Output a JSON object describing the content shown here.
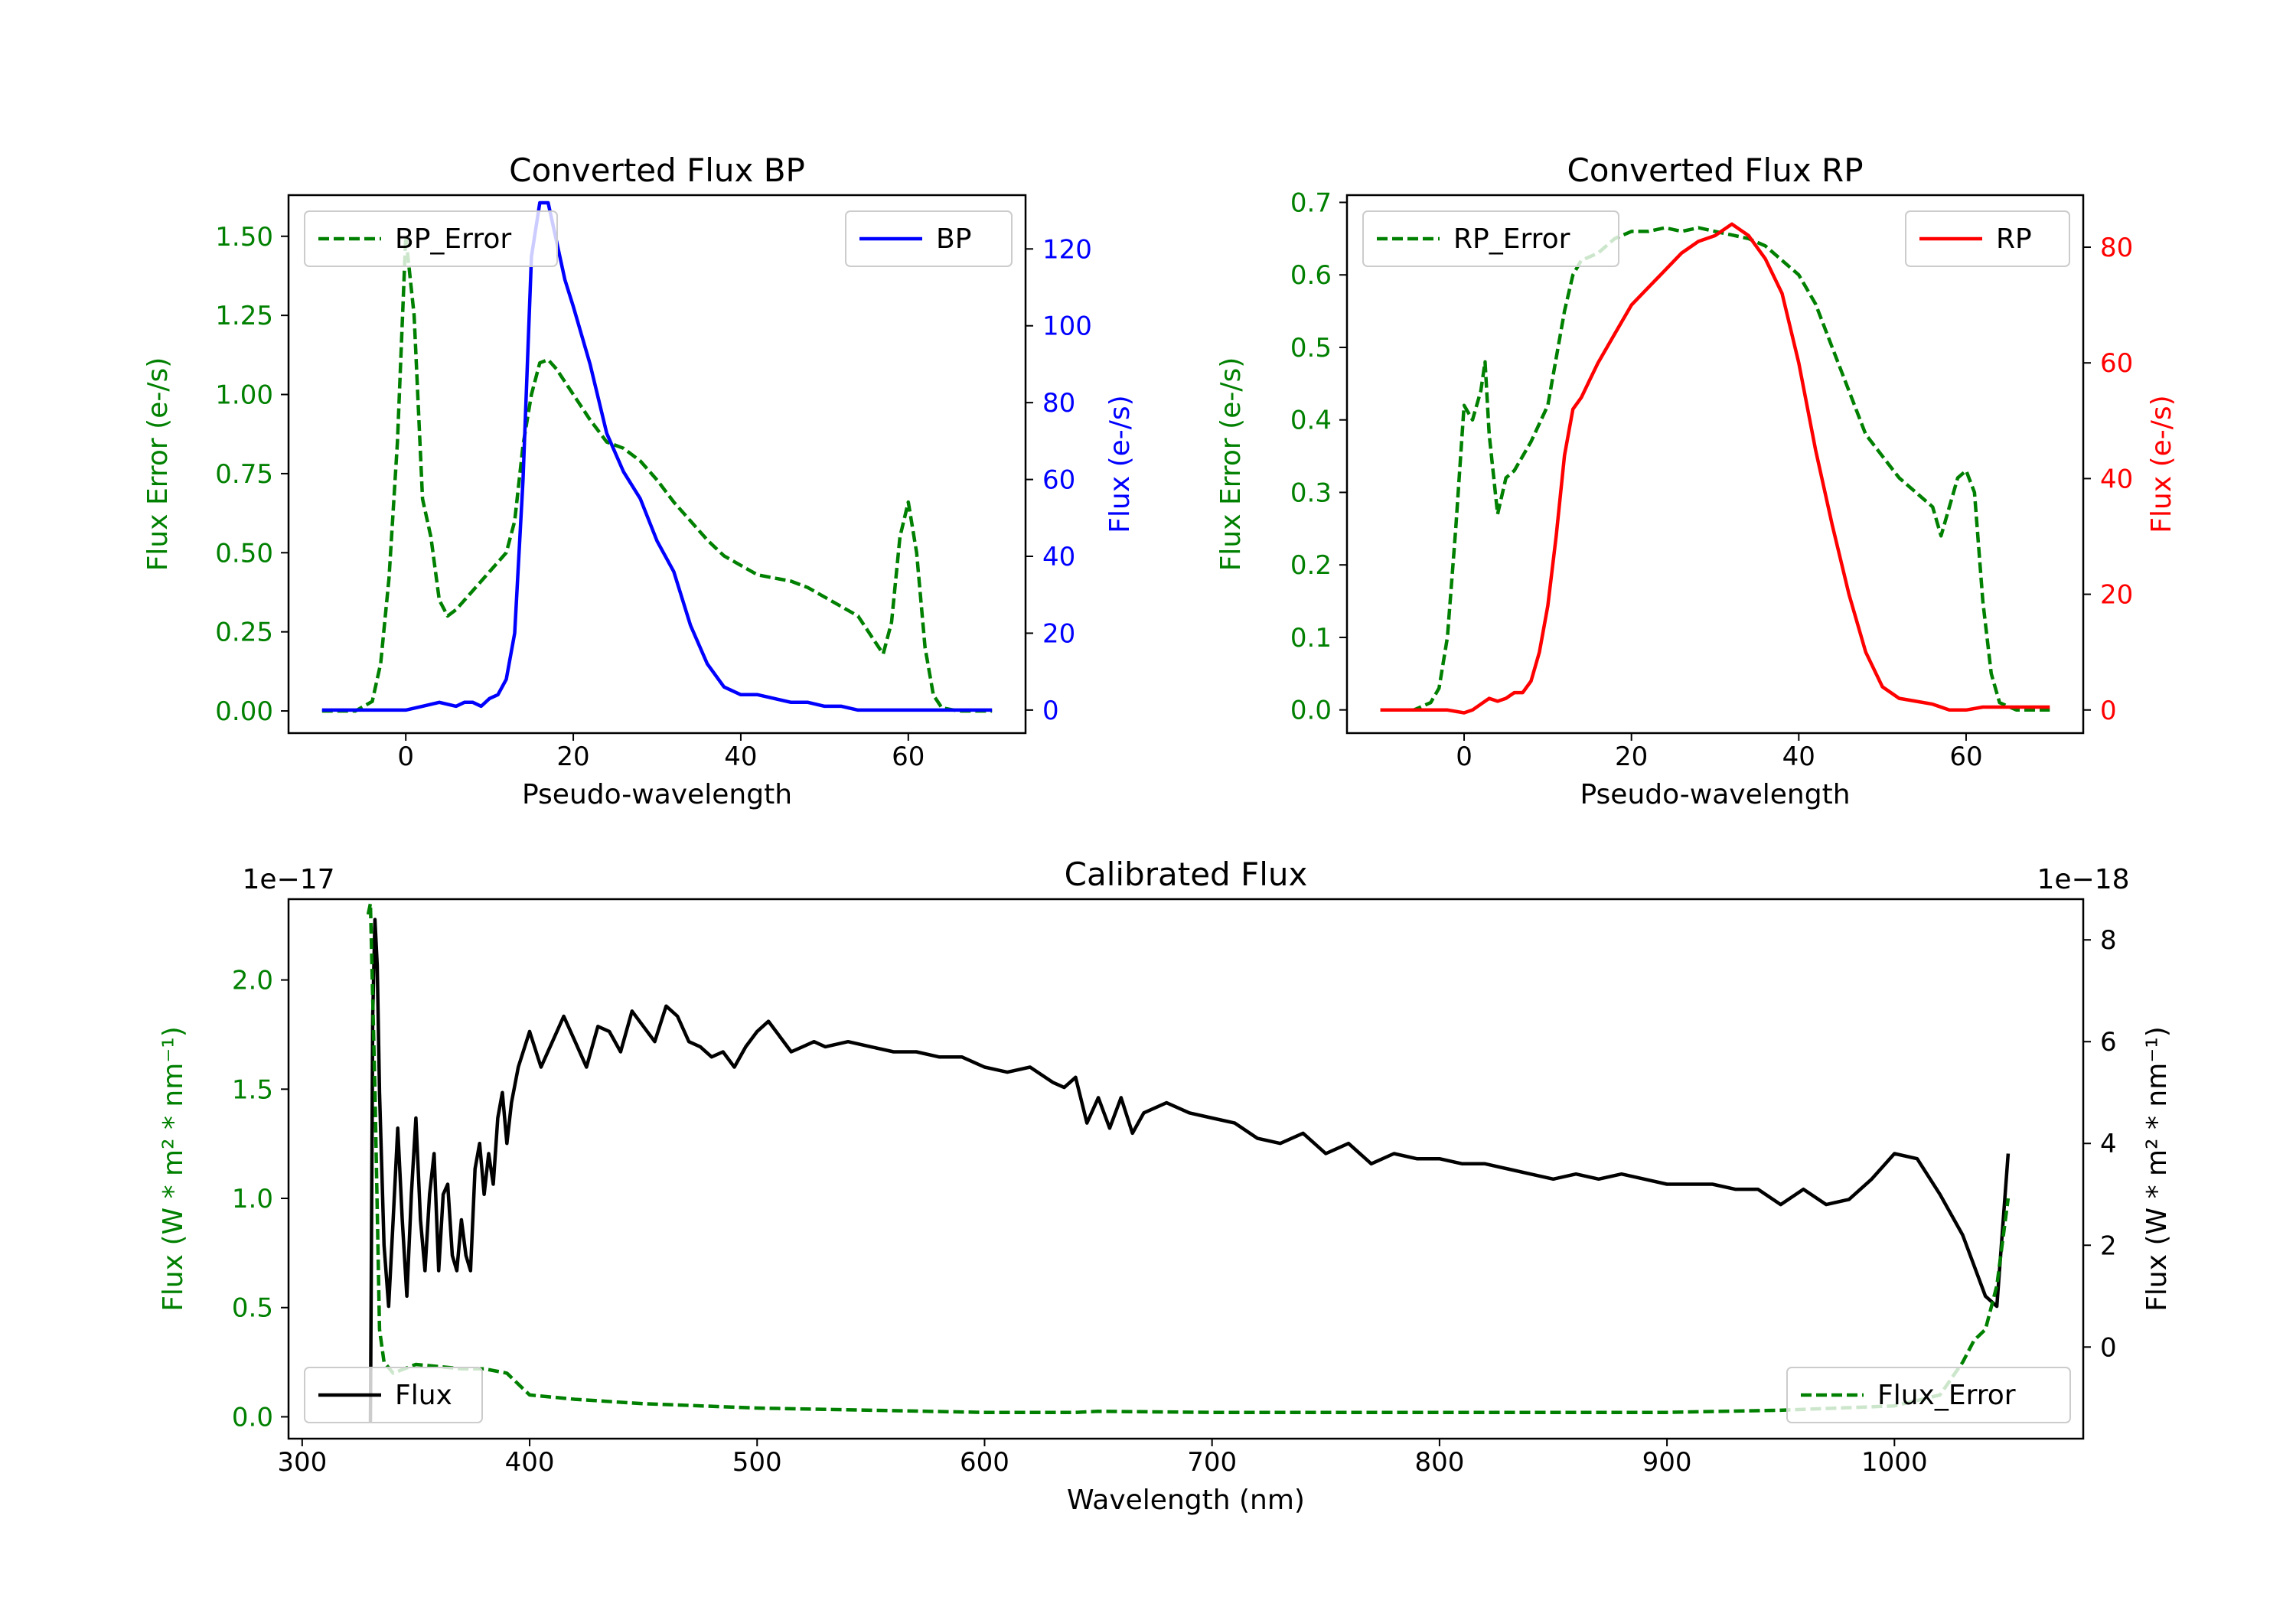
{
  "colors": {
    "green": "#008000",
    "blue": "#0000ff",
    "red": "#ff0000",
    "black": "#000000"
  },
  "chart_data": [
    {
      "type": "line",
      "title": "Converted Flux BP",
      "xlabel": "Pseudo-wavelength",
      "ylabel_left": "Flux Error (e-/s)",
      "ylabel_right": "Flux (e-/s)",
      "xlim": [
        -14,
        74
      ],
      "ylim_left": [
        -0.07,
        1.63
      ],
      "ylim_right": [
        -6,
        134
      ],
      "x_ticks": [
        {
          "v": 0,
          "label": "0"
        },
        {
          "v": 20,
          "label": "20"
        },
        {
          "v": 40,
          "label": "40"
        },
        {
          "v": 60,
          "label": "60"
        }
      ],
      "y_left_ticks": [
        {
          "v": 0,
          "label": "0.00"
        },
        {
          "v": 0.25,
          "label": "0.25"
        },
        {
          "v": 0.5,
          "label": "0.50"
        },
        {
          "v": 0.75,
          "label": "0.75"
        },
        {
          "v": 1.0,
          "label": "1.00"
        },
        {
          "v": 1.25,
          "label": "1.25"
        },
        {
          "v": 1.5,
          "label": "1.50"
        }
      ],
      "y_right_ticks": [
        {
          "v": 0,
          "label": "0"
        },
        {
          "v": 20,
          "label": "20"
        },
        {
          "v": 40,
          "label": "40"
        },
        {
          "v": 60,
          "label": "60"
        },
        {
          "v": 80,
          "label": "80"
        },
        {
          "v": 100,
          "label": "100"
        },
        {
          "v": 120,
          "label": "120"
        }
      ],
      "left_axis_color": "#008000",
      "right_axis_color": "#0000ff",
      "legend_left": {
        "label": "BP_Error",
        "position": "upper-left"
      },
      "legend_right": {
        "label": "BP",
        "position": "upper-right"
      },
      "series": [
        {
          "name": "BP_Error",
          "axis": "left",
          "color": "#008000",
          "style": "dashed",
          "x": [
            -10,
            -6,
            -4,
            -3,
            -2,
            -1,
            0,
            1,
            2,
            3,
            4,
            5,
            6,
            8,
            10,
            12,
            13,
            14,
            15,
            16,
            17,
            18,
            20,
            22,
            24,
            26,
            28,
            30,
            32,
            34,
            36,
            38,
            40,
            42,
            44,
            46,
            48,
            50,
            52,
            54,
            56,
            57,
            58,
            59,
            60,
            61,
            62,
            63,
            64,
            66,
            68,
            70
          ],
          "y": [
            0.0,
            0.0,
            0.03,
            0.15,
            0.42,
            0.85,
            1.5,
            1.25,
            0.67,
            0.55,
            0.35,
            0.3,
            0.32,
            0.38,
            0.44,
            0.5,
            0.6,
            0.84,
            1.0,
            1.1,
            1.11,
            1.08,
            1.0,
            0.92,
            0.85,
            0.83,
            0.79,
            0.73,
            0.66,
            0.6,
            0.54,
            0.49,
            0.46,
            0.43,
            0.42,
            0.41,
            0.39,
            0.36,
            0.33,
            0.3,
            0.22,
            0.18,
            0.28,
            0.55,
            0.66,
            0.5,
            0.2,
            0.05,
            0.01,
            0.0,
            0.0,
            0.0
          ]
        },
        {
          "name": "BP",
          "axis": "right",
          "color": "#0000ff",
          "style": "solid",
          "x": [
            -10,
            -5,
            0,
            2,
            4,
            6,
            7,
            8,
            9,
            10,
            11,
            12,
            13,
            14,
            15,
            16,
            17,
            18,
            19,
            20,
            22,
            24,
            26,
            28,
            30,
            32,
            34,
            36,
            38,
            40,
            42,
            44,
            46,
            48,
            50,
            52,
            54,
            56,
            58,
            60,
            62,
            64,
            66,
            68,
            70
          ],
          "y": [
            0,
            0,
            0,
            1,
            2,
            1,
            2,
            2,
            1,
            3,
            4,
            8,
            20,
            60,
            118,
            132,
            132,
            122,
            112,
            105,
            90,
            72,
            62,
            55,
            44,
            36,
            22,
            12,
            6,
            4,
            4,
            3,
            2,
            2,
            1,
            1,
            0,
            0,
            0,
            0,
            0,
            0,
            0,
            0,
            0
          ]
        }
      ]
    },
    {
      "type": "line",
      "title": "Converted Flux RP",
      "xlabel": "Pseudo-wavelength",
      "ylabel_left": "Flux Error (e-/s)",
      "ylabel_right": "Flux (e-/s)",
      "xlim": [
        -14,
        74
      ],
      "ylim_left": [
        -0.032,
        0.71
      ],
      "ylim_right": [
        -4,
        89
      ],
      "x_ticks": [
        {
          "v": 0,
          "label": "0"
        },
        {
          "v": 20,
          "label": "20"
        },
        {
          "v": 40,
          "label": "40"
        },
        {
          "v": 60,
          "label": "60"
        }
      ],
      "y_left_ticks": [
        {
          "v": 0,
          "label": "0.0"
        },
        {
          "v": 0.1,
          "label": "0.1"
        },
        {
          "v": 0.2,
          "label": "0.2"
        },
        {
          "v": 0.3,
          "label": "0.3"
        },
        {
          "v": 0.4,
          "label": "0.4"
        },
        {
          "v": 0.5,
          "label": "0.5"
        },
        {
          "v": 0.6,
          "label": "0.6"
        },
        {
          "v": 0.7,
          "label": "0.7"
        }
      ],
      "y_right_ticks": [
        {
          "v": 0,
          "label": "0"
        },
        {
          "v": 20,
          "label": "20"
        },
        {
          "v": 40,
          "label": "40"
        },
        {
          "v": 60,
          "label": "60"
        },
        {
          "v": 80,
          "label": "80"
        }
      ],
      "left_axis_color": "#008000",
      "right_axis_color": "#ff0000",
      "legend_left": {
        "label": "RP_Error",
        "position": "upper-left"
      },
      "legend_right": {
        "label": "RP",
        "position": "upper-right"
      },
      "series": [
        {
          "name": "RP_Error",
          "axis": "left",
          "color": "#008000",
          "style": "dashed",
          "x": [
            -10,
            -6,
            -4,
            -3,
            -2,
            -1,
            0,
            1,
            2,
            2.5,
            3,
            4,
            5,
            6,
            8,
            10,
            12,
            13,
            14,
            16,
            18,
            20,
            22,
            24,
            26,
            28,
            30,
            32,
            34,
            36,
            38,
            40,
            42,
            44,
            46,
            48,
            50,
            52,
            54,
            56,
            57,
            58,
            59,
            60,
            61,
            62,
            63,
            64,
            66,
            68,
            70
          ],
          "y": [
            0.0,
            0.0,
            0.01,
            0.03,
            0.1,
            0.25,
            0.42,
            0.4,
            0.44,
            0.48,
            0.38,
            0.27,
            0.32,
            0.33,
            0.37,
            0.42,
            0.55,
            0.6,
            0.62,
            0.63,
            0.65,
            0.66,
            0.66,
            0.665,
            0.66,
            0.665,
            0.66,
            0.655,
            0.65,
            0.64,
            0.62,
            0.6,
            0.56,
            0.5,
            0.44,
            0.38,
            0.35,
            0.32,
            0.3,
            0.28,
            0.24,
            0.28,
            0.32,
            0.33,
            0.3,
            0.15,
            0.05,
            0.01,
            0.0,
            0.0,
            0.0
          ]
        },
        {
          "name": "RP",
          "axis": "right",
          "color": "#ff0000",
          "style": "solid",
          "x": [
            -10,
            -5,
            -2,
            0,
            1,
            2,
            3,
            4,
            5,
            6,
            7,
            8,
            9,
            10,
            11,
            12,
            13,
            14,
            15,
            16,
            18,
            20,
            22,
            24,
            26,
            28,
            30,
            32,
            34,
            36,
            38,
            40,
            42,
            44,
            46,
            48,
            50,
            52,
            54,
            56,
            58,
            60,
            62,
            64,
            66,
            68,
            70
          ],
          "y": [
            0,
            0,
            0,
            -0.5,
            0,
            1,
            2,
            1.5,
            2,
            3,
            3,
            5,
            10,
            18,
            30,
            44,
            52,
            54,
            57,
            60,
            65,
            70,
            73,
            76,
            79,
            81,
            82,
            84,
            82,
            78,
            72,
            60,
            45,
            32,
            20,
            10,
            4,
            2,
            1.5,
            1,
            0,
            0,
            0.5,
            0.5,
            0.5,
            0.5,
            0.5
          ]
        }
      ]
    },
    {
      "type": "line",
      "title": "Calibrated Flux",
      "xlabel": "Wavelength (nm)",
      "ylabel_left": "Flux (W * m² * nm⁻¹)",
      "ylabel_right": "Flux (W * m² * nm⁻¹)",
      "left_offset_text": "1e−17",
      "right_offset_text": "1e−18",
      "xlim": [
        294,
        1083
      ],
      "ylim_left": [
        -0.1,
        2.37
      ],
      "ylim_right": [
        -1.8,
        8.8
      ],
      "x_ticks": [
        {
          "v": 300,
          "label": "300"
        },
        {
          "v": 400,
          "label": "400"
        },
        {
          "v": 500,
          "label": "500"
        },
        {
          "v": 600,
          "label": "600"
        },
        {
          "v": 700,
          "label": "700"
        },
        {
          "v": 800,
          "label": "800"
        },
        {
          "v": 900,
          "label": "900"
        },
        {
          "v": 1000,
          "label": "1000"
        }
      ],
      "y_left_ticks": [
        {
          "v": 0,
          "label": "0.0"
        },
        {
          "v": 0.5,
          "label": "0.5"
        },
        {
          "v": 1.0,
          "label": "1.0"
        },
        {
          "v": 1.5,
          "label": "1.5"
        },
        {
          "v": 2.0,
          "label": "2.0"
        }
      ],
      "y_right_ticks": [
        {
          "v": 0,
          "label": "0"
        },
        {
          "v": 2,
          "label": "2"
        },
        {
          "v": 4,
          "label": "4"
        },
        {
          "v": 6,
          "label": "6"
        },
        {
          "v": 8,
          "label": "8"
        }
      ],
      "left_axis_color": "#008000",
      "right_axis_color": "#000000",
      "legend_left": {
        "label": "Flux",
        "position": "lower-left"
      },
      "legend_right": {
        "label": "Flux_Error",
        "position": "lower-right"
      },
      "series": [
        {
          "name": "Flux",
          "axis": "right",
          "color": "#000000",
          "style": "solid",
          "x": [
            330,
            331,
            332,
            333,
            334,
            336,
            338,
            340,
            342,
            344,
            346,
            348,
            350,
            352,
            354,
            356,
            358,
            360,
            362,
            364,
            366,
            368,
            370,
            372,
            374,
            376,
            378,
            380,
            382,
            384,
            386,
            388,
            390,
            392,
            395,
            400,
            405,
            410,
            415,
            420,
            425,
            430,
            435,
            440,
            445,
            450,
            455,
            460,
            465,
            470,
            475,
            480,
            485,
            490,
            495,
            500,
            505,
            510,
            515,
            520,
            525,
            530,
            540,
            550,
            560,
            570,
            580,
            590,
            600,
            610,
            620,
            630,
            635,
            640,
            645,
            650,
            655,
            660,
            665,
            670,
            680,
            690,
            700,
            710,
            720,
            730,
            740,
            750,
            760,
            770,
            780,
            790,
            800,
            810,
            820,
            830,
            840,
            850,
            860,
            870,
            880,
            890,
            900,
            910,
            920,
            930,
            940,
            950,
            960,
            970,
            980,
            990,
            1000,
            1010,
            1020,
            1030,
            1040,
            1045,
            1050
          ],
          "y": [
            -1.5,
            6.5,
            8.4,
            7.5,
            5.0,
            2.0,
            0.8,
            2.5,
            4.3,
            2.5,
            1.0,
            3.0,
            4.5,
            2.5,
            1.5,
            3.0,
            3.8,
            1.5,
            3.0,
            3.2,
            1.8,
            1.5,
            2.5,
            1.8,
            1.5,
            3.5,
            4.0,
            3.0,
            3.8,
            3.2,
            4.5,
            5.0,
            4.0,
            4.8,
            5.5,
            6.2,
            5.5,
            6.0,
            6.5,
            6.0,
            5.5,
            6.3,
            6.2,
            5.8,
            6.6,
            6.3,
            6.0,
            6.7,
            6.5,
            6.0,
            5.9,
            5.7,
            5.8,
            5.5,
            5.9,
            6.2,
            6.4,
            6.1,
            5.8,
            5.9,
            6.0,
            5.9,
            6.0,
            5.9,
            5.8,
            5.8,
            5.7,
            5.7,
            5.5,
            5.4,
            5.5,
            5.2,
            5.1,
            5.3,
            4.4,
            4.9,
            4.3,
            4.9,
            4.2,
            4.6,
            4.8,
            4.6,
            4.5,
            4.4,
            4.1,
            4.0,
            4.2,
            3.8,
            4.0,
            3.6,
            3.8,
            3.7,
            3.7,
            3.6,
            3.6,
            3.5,
            3.4,
            3.3,
            3.4,
            3.3,
            3.4,
            3.3,
            3.2,
            3.2,
            3.2,
            3.1,
            3.1,
            2.8,
            3.1,
            2.8,
            2.9,
            3.3,
            3.8,
            3.7,
            3.0,
            2.2,
            1.0,
            0.8,
            3.8
          ]
        },
        {
          "name": "Flux_Error",
          "axis": "left",
          "color": "#008000",
          "style": "dashed",
          "x": [
            329,
            330,
            332,
            334,
            336,
            340,
            345,
            350,
            360,
            370,
            380,
            390,
            400,
            420,
            450,
            500,
            550,
            600,
            640,
            650,
            700,
            750,
            800,
            850,
            900,
            950,
            1000,
            1020,
            1030,
            1035,
            1040,
            1045,
            1050
          ],
          "y": [
            2.3,
            2.35,
            1.5,
            0.4,
            0.25,
            0.2,
            0.22,
            0.24,
            0.23,
            0.22,
            0.22,
            0.2,
            0.1,
            0.08,
            0.06,
            0.04,
            0.03,
            0.02,
            0.02,
            0.025,
            0.02,
            0.02,
            0.02,
            0.02,
            0.02,
            0.03,
            0.05,
            0.1,
            0.25,
            0.35,
            0.4,
            0.6,
            1.0
          ]
        }
      ]
    }
  ]
}
